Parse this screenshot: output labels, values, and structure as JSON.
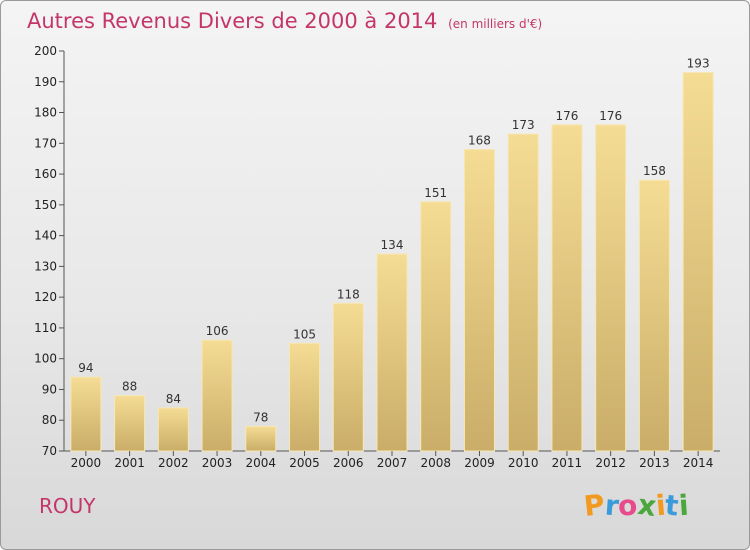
{
  "chart_data": {
    "type": "bar",
    "title": "Autres Revenus Divers de 2000 à 2014",
    "unit": "(en milliers d'€)",
    "categories": [
      "2000",
      "2001",
      "2002",
      "2003",
      "2004",
      "2005",
      "2006",
      "2007",
      "2008",
      "2009",
      "2010",
      "2011",
      "2012",
      "2013",
      "2014"
    ],
    "values": [
      94,
      88,
      84,
      106,
      78,
      105,
      118,
      134,
      151,
      168,
      173,
      176,
      176,
      158,
      193
    ],
    "ylim": [
      70,
      200
    ],
    "yticks": [
      70,
      80,
      90,
      100,
      110,
      120,
      130,
      140,
      150,
      160,
      170,
      180,
      190,
      200
    ],
    "grid": false,
    "bar_color": "#e8cd82"
  },
  "footer": {
    "commune": "ROUY",
    "logo_letters": [
      "P",
      "r",
      "o",
      "x",
      "i",
      "t",
      "i"
    ],
    "logo_colors": [
      "#f29a1f",
      "#3b9ad9",
      "#e84c8b",
      "#4aa73c",
      "#f29a1f",
      "#3b9ad9",
      "#4aa73c"
    ]
  }
}
